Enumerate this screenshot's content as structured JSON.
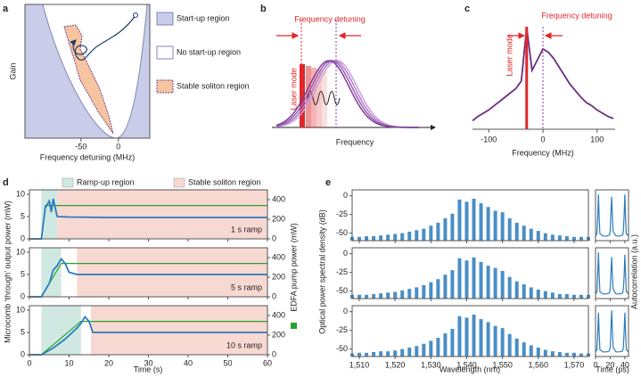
{
  "chart_data": [
    {
      "label": "a",
      "type": "region",
      "xlabel": "Frequency detuning (MHz)",
      "ylabel": "Gain",
      "xlim": [
        -125,
        42
      ],
      "xticks": [
        -50,
        0
      ],
      "legend": [
        {
          "name": "Start-up region",
          "color": "#c9cde9"
        },
        {
          "name": "No start-up region",
          "color": "#ffffff"
        },
        {
          "name": "Stable soliton region",
          "color": "#f6c4a0"
        }
      ]
    },
    {
      "label": "b",
      "type": "schematic",
      "xlabel": "Frequency",
      "annotations": [
        "Frequency detuning",
        "Laser mode"
      ]
    },
    {
      "label": "c",
      "type": "line",
      "xlabel": "Frequency (MHz)",
      "xlim": [
        -130,
        130
      ],
      "ylim": [
        0,
        1
      ],
      "xticks": [
        -100,
        0,
        100
      ],
      "color": "#6b2c80",
      "laser_mode": -30,
      "annotations": [
        "Laser mode",
        "Frequency detuning"
      ],
      "x": [
        -130,
        -120,
        -110,
        -100,
        -90,
        -80,
        -70,
        -60,
        -50,
        -40,
        -30,
        -20,
        -10,
        0,
        10,
        20,
        30,
        40,
        50,
        60,
        70,
        80,
        90,
        100,
        110,
        120,
        130
      ],
      "values": [
        0.08,
        0.12,
        0.15,
        0.18,
        0.22,
        0.26,
        0.3,
        0.34,
        0.38,
        0.45,
        0.95,
        0.55,
        0.65,
        0.75,
        0.72,
        0.66,
        0.58,
        0.5,
        0.42,
        0.36,
        0.3,
        0.25,
        0.22,
        0.18,
        0.15,
        0.12,
        0.1
      ]
    },
    {
      "label": "d",
      "type": "dual-line-stack",
      "xlabel": "Time (s)",
      "ylabel": "Microcomb ‘through’ output power (mW)",
      "y2label": "EDFA pump power (mW)",
      "xlim": [
        0,
        60
      ],
      "xticks": [
        0,
        10,
        20,
        30,
        40,
        50,
        60
      ],
      "ylim": [
        0,
        11
      ],
      "yticks": [
        0,
        5,
        10
      ],
      "y2lim": [
        0,
        500
      ],
      "y2ticks": [
        0,
        200,
        400
      ],
      "color": "#2a7bbf",
      "y2color": "#2ca02c",
      "regions": [
        {
          "name": "Ramp-up region",
          "color": "#cfe9e2"
        },
        {
          "name": "Stable soliton region",
          "color": "#f8d9d2"
        }
      ],
      "subplots": [
        {
          "annotation": "1 s ramp",
          "ramp_region": [
            3,
            7
          ],
          "stable_region": [
            7,
            60
          ],
          "x": [
            0,
            3,
            4,
            5,
            5.5,
            6,
            6.5,
            7,
            10,
            20,
            30,
            40,
            50,
            60
          ],
          "power": [
            0,
            0,
            7,
            8.5,
            6,
            9,
            7,
            5,
            4.9,
            4.8,
            4.8,
            4.8,
            4.8,
            4.8
          ],
          "pump": [
            0,
            0,
            340,
            340,
            340,
            340,
            340,
            340,
            340,
            340,
            340,
            340,
            340,
            340
          ]
        },
        {
          "annotation": "5 s ramp",
          "ramp_region": [
            3,
            8
          ],
          "stable_region": [
            12,
            60
          ],
          "x": [
            0,
            3,
            5,
            6,
            7,
            8,
            9,
            10,
            12,
            20,
            30,
            40,
            50,
            60
          ],
          "power": [
            0,
            0,
            3,
            6,
            7,
            8.5,
            7.5,
            5.5,
            5,
            5,
            5,
            5,
            5,
            5
          ],
          "pump": [
            0,
            0,
            136,
            204,
            272,
            340,
            340,
            340,
            340,
            340,
            340,
            340,
            340,
            340
          ]
        },
        {
          "annotation": "10 s ramp",
          "ramp_region": [
            3,
            13
          ],
          "stable_region": [
            15.5,
            60
          ],
          "x": [
            0,
            3,
            6,
            9,
            12,
            13,
            14,
            15,
            16,
            20,
            30,
            40,
            50,
            60
          ],
          "power": [
            0,
            0,
            1.5,
            3.5,
            6,
            7,
            8.5,
            7.5,
            5,
            5,
            5,
            5,
            5,
            5
          ],
          "pump": [
            0,
            0,
            102,
            204,
            306,
            340,
            340,
            340,
            340,
            340,
            340,
            340,
            340,
            340
          ]
        }
      ]
    },
    {
      "label": "e",
      "type": "spectrum-stack",
      "xlabel": "Wavelength (nm)",
      "ylabel": "Optical power spectral density (dB)",
      "ac_xlabel": "Time (ps)",
      "ac_ylabel": "Autocorrelation (a.u.)",
      "xlim": [
        1508,
        1574
      ],
      "ylim": [
        -60,
        8
      ],
      "yticks": [
        0,
        -25,
        -50
      ],
      "ac_xlim": [
        0,
        45
      ],
      "ac_ylim": [
        0,
        1.1
      ],
      "ac_xticks": [
        0,
        20,
        40
      ],
      "color": "#2b7bbb",
      "xticks": [
        {
          "value": 1510,
          "label": "1,510"
        },
        {
          "value": 1520,
          "label": "1,520"
        },
        {
          "value": 1530,
          "label": "1,530"
        },
        {
          "value": 1540,
          "label": "1,540"
        },
        {
          "value": 1550,
          "label": "1,550"
        },
        {
          "value": 1560,
          "label": "1,560"
        },
        {
          "value": 1570,
          "label": "1,570"
        }
      ],
      "x": [
        1508,
        1510,
        1512,
        1514,
        1516,
        1518,
        1520,
        1522,
        1524,
        1526,
        1528,
        1530,
        1532,
        1534,
        1536,
        1538,
        1540,
        1542,
        1544,
        1546,
        1548,
        1550,
        1552,
        1554,
        1556,
        1558,
        1560,
        1562,
        1564,
        1566,
        1568,
        1570,
        1572,
        1574
      ],
      "ac_x": [
        0,
        2,
        3,
        4,
        5,
        6,
        10,
        15,
        19,
        20,
        21,
        22,
        23,
        24,
        28,
        33,
        37,
        38,
        39,
        40,
        41,
        42,
        45
      ],
      "rows": [
        {
          "values": [
            -55,
            -55,
            -54,
            -54,
            -53,
            -52,
            -51,
            -50,
            -48,
            -46,
            -44,
            -40,
            -36,
            -30,
            -24,
            -5,
            -8,
            -4,
            -10,
            -15,
            -20,
            -22,
            -30,
            -36,
            -40,
            -44,
            -47,
            -50,
            -52,
            -53,
            -54,
            -55,
            -55,
            -55
          ],
          "autocorrelation": [
            0.1,
            0.15,
            0.5,
            1,
            0.5,
            0.15,
            0.1,
            0.1,
            0.12,
            0.2,
            0.6,
            0.95,
            0.55,
            0.2,
            0.1,
            0.1,
            0.12,
            0.2,
            0.55,
            1,
            0.5,
            0.15,
            0.1
          ]
        },
        {
          "values": [
            -55,
            -55,
            -55,
            -54,
            -53,
            -52,
            -51,
            -49,
            -47,
            -45,
            -42,
            -38,
            -34,
            -28,
            -22,
            -6,
            -9,
            -5,
            -11,
            -16,
            -19,
            -23,
            -31,
            -37,
            -41,
            -45,
            -48,
            -50,
            -52,
            -54,
            -54,
            -55,
            -55,
            -55
          ],
          "autocorrelation": [
            0.1,
            0.15,
            0.55,
            1,
            0.5,
            0.15,
            0.1,
            0.1,
            0.12,
            0.2,
            0.55,
            0.9,
            0.5,
            0.2,
            0.1,
            0.1,
            0.12,
            0.2,
            0.5,
            0.95,
            0.5,
            0.15,
            0.1
          ]
        },
        {
          "values": [
            -56,
            -55,
            -55,
            -54,
            -53,
            -53,
            -52,
            -50,
            -48,
            -46,
            -43,
            -39,
            -35,
            -29,
            -23,
            -6,
            -8,
            -4,
            -10,
            -14,
            -19,
            -22,
            -30,
            -36,
            -41,
            -45,
            -48,
            -51,
            -53,
            -54,
            -55,
            -55,
            -56,
            -56
          ],
          "autocorrelation": [
            0.1,
            0.15,
            0.5,
            0.95,
            0.5,
            0.15,
            0.1,
            0.1,
            0.12,
            0.2,
            0.6,
            1,
            0.55,
            0.2,
            0.1,
            0.1,
            0.12,
            0.2,
            0.55,
            0.95,
            0.5,
            0.15,
            0.1
          ]
        }
      ]
    }
  ]
}
